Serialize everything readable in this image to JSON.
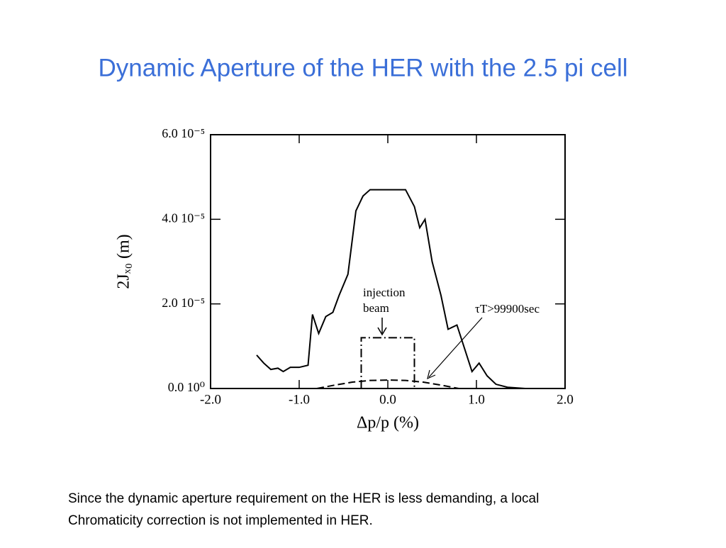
{
  "title": "Dynamic Aperture of the HER with the 2.5 pi cell",
  "caption": [
    "Since the dynamic aperture requirement on the HER is less demanding, a local",
    "Chromaticity correction is not implemented in HER."
  ],
  "chart_data": {
    "type": "line",
    "xlabel": "Δp/p (%)",
    "ylabel": "2Jₓ₀ (m)",
    "xlim": [
      -2,
      2
    ],
    "ylim": [
      0,
      6e-05
    ],
    "xticks": [
      {
        "value": -2,
        "label": "-2.0"
      },
      {
        "value": -1,
        "label": "-1.0"
      },
      {
        "value": 0,
        "label": "0.0"
      },
      {
        "value": 1,
        "label": "1.0"
      },
      {
        "value": 2,
        "label": "2.0"
      }
    ],
    "yticks": [
      {
        "value": 0,
        "label": "0.0 10⁰"
      },
      {
        "value": 2e-05,
        "label": "2.0 10⁻⁵"
      },
      {
        "value": 4e-05,
        "label": "4.0 10⁻⁵"
      },
      {
        "value": 6e-05,
        "label": "6.0 10⁻⁵"
      }
    ],
    "series": [
      {
        "color": "#000000",
        "dash": "solid",
        "x": [
          -1.48,
          -1.4,
          -1.32,
          -1.24,
          -1.18,
          -1.1,
          -1.0,
          -0.9,
          -0.85,
          -0.78,
          -0.7,
          -0.62,
          -0.55,
          -0.45,
          -0.36,
          -0.28,
          -0.2,
          0.2,
          0.3,
          0.36,
          0.42,
          0.5,
          0.6,
          0.68,
          0.78,
          0.95,
          1.03,
          1.12,
          1.22,
          1.35,
          1.55
        ],
        "values": [
          7.9e-06,
          6e-06,
          4.5e-06,
          4.8e-06,
          4e-06,
          5e-06,
          5e-06,
          5.5e-06,
          1.75e-05,
          1.3e-05,
          1.7e-05,
          1.8e-05,
          2.2e-05,
          2.7e-05,
          4.2e-05,
          4.55e-05,
          4.7e-05,
          4.7e-05,
          4.3e-05,
          3.8e-05,
          4e-05,
          3e-05,
          2.2e-05,
          1.4e-05,
          1.5e-05,
          4e-06,
          6e-06,
          3e-06,
          1e-06,
          3e-07,
          0
        ]
      },
      {
        "color": "#000000",
        "dash": "dashed",
        "x": [
          -0.8,
          -0.6,
          -0.4,
          -0.2,
          0,
          0.2,
          0.4,
          0.6,
          0.8
        ],
        "values": [
          0,
          8e-07,
          1.5e-06,
          1.9e-06,
          2e-06,
          1.9e-06,
          1.5e-06,
          8e-07,
          0
        ]
      },
      {
        "color": "#000000",
        "dash": "dashdot",
        "x": [
          -0.3,
          -0.3,
          0.3,
          0.3
        ],
        "values": [
          0,
          1.2e-05,
          1.2e-05,
          0
        ]
      }
    ],
    "annotations": [
      "injection",
      "beam",
      "τT>99900sec"
    ]
  }
}
